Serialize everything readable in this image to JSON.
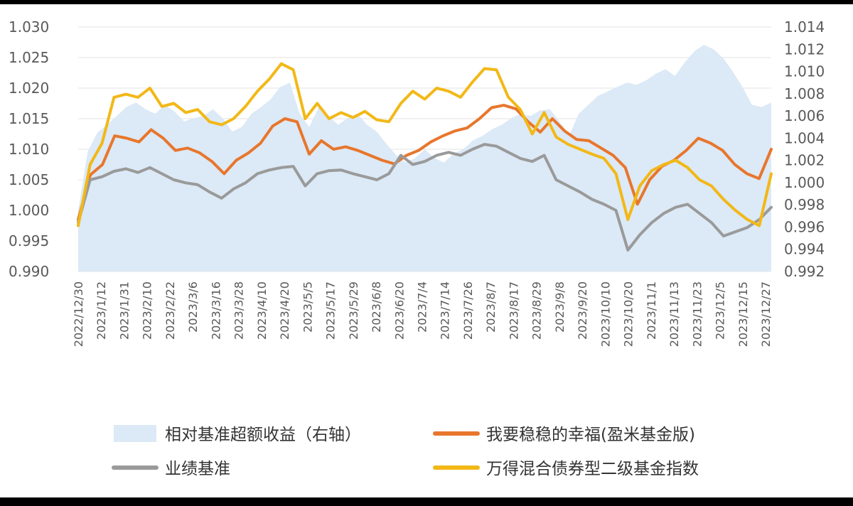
{
  "chart_data": {
    "type": "line",
    "title": "",
    "left_axis": {
      "ylim": [
        0.99,
        1.03
      ],
      "ticks": [
        "1.030",
        "1.025",
        "1.020",
        "1.015",
        "1.010",
        "1.005",
        "1.000",
        "0.995",
        "0.990"
      ]
    },
    "right_axis": {
      "ylim": [
        0.992,
        1.014
      ],
      "ticks": [
        "1.014",
        "1.012",
        "1.010",
        "1.008",
        "1.006",
        "1.004",
        "1.002",
        "1.000",
        "0.998",
        "0.996",
        "0.994",
        "0.992"
      ]
    },
    "x_tick_labels": [
      "2022/12/30",
      "2023/1/12",
      "2023/1/31",
      "2023/2/10",
      "2023/2/22",
      "2023/3/6",
      "2023/3/16",
      "2023/3/28",
      "2023/4/10",
      "2023/4/20",
      "2023/5/5",
      "2023/5/17",
      "2023/5/29",
      "2023/6/8",
      "2023/6/20",
      "2023/7/4",
      "2023/7/14",
      "2023/7/26",
      "2023/8/7",
      "2023/8/17",
      "2023/8/29",
      "2023/9/8",
      "2023/9/20",
      "2023/10/10",
      "2023/10/20",
      "2023/11/1",
      "2023/11/13",
      "2023/11/23",
      "2023/12/5",
      "2023/12/15",
      "2023/12/27"
    ],
    "series": [
      {
        "name": "相对基准超额收益（右轴）",
        "type": "area",
        "axis": "right",
        "color": "#dce9f6",
        "values": [
          0.9975,
          1.0028,
          1.0045,
          1.0052,
          1.006,
          1.0068,
          1.0072,
          1.0066,
          1.0062,
          1.007,
          1.0064,
          1.0055,
          1.0058,
          1.006,
          1.0066,
          1.0058,
          1.0046,
          1.005,
          1.0062,
          1.0068,
          1.0075,
          1.0086,
          1.009,
          1.0062,
          1.005,
          1.0068,
          1.006,
          1.0052,
          1.0058,
          1.0062,
          1.0052,
          1.0046,
          1.0035,
          1.0025,
          1.0018,
          1.0022,
          1.003,
          1.0022,
          1.0018,
          1.0026,
          1.003,
          1.0038,
          1.0042,
          1.0048,
          1.0052,
          1.0058,
          1.0062,
          1.006,
          1.0065,
          1.0066,
          1.0055,
          1.0042,
          1.0062,
          1.007,
          1.0078,
          1.0082,
          1.0086,
          1.009,
          1.0088,
          1.0092,
          1.0098,
          1.0102,
          1.0096,
          1.0108,
          1.0118,
          1.0124,
          1.012,
          1.0112,
          1.01,
          1.0086,
          1.007,
          1.0068,
          1.0072
        ]
      },
      {
        "name": "我要稳稳的幸福(盈米基金版)",
        "type": "line",
        "axis": "left",
        "color": "#e8762c",
        "values": [
          0.9985,
          1.0058,
          1.0075,
          1.0122,
          1.0118,
          1.0112,
          1.0132,
          1.0118,
          1.0098,
          1.0102,
          1.0094,
          1.008,
          1.006,
          1.0082,
          1.0094,
          1.011,
          1.0138,
          1.015,
          1.0145,
          1.0092,
          1.0114,
          1.01,
          1.0104,
          1.0098,
          1.009,
          1.0082,
          1.0076,
          1.009,
          1.0098,
          1.0112,
          1.0122,
          1.013,
          1.0135,
          1.015,
          1.0168,
          1.0172,
          1.0166,
          1.0145,
          1.0128,
          1.015,
          1.013,
          1.0116,
          1.0114,
          1.0102,
          1.009,
          1.007,
          1.001,
          1.005,
          1.0072,
          1.0082,
          1.0098,
          1.0118,
          1.011,
          1.0098,
          1.0075,
          1.006,
          1.0052,
          1.01
        ]
      },
      {
        "name": "业绩基准",
        "type": "line",
        "axis": "left",
        "color": "#9a9a9a",
        "values": [
          0.998,
          1.005,
          1.0055,
          1.0064,
          1.0068,
          1.0062,
          1.007,
          1.006,
          1.005,
          1.0045,
          1.0042,
          1.003,
          1.002,
          1.0035,
          1.0045,
          1.006,
          1.0066,
          1.007,
          1.0072,
          1.004,
          1.006,
          1.0065,
          1.0066,
          1.006,
          1.0055,
          1.005,
          1.006,
          1.009,
          1.0075,
          1.008,
          1.009,
          1.0095,
          1.009,
          1.01,
          1.0108,
          1.0105,
          1.0095,
          1.0085,
          1.008,
          1.009,
          1.005,
          1.004,
          1.003,
          1.0018,
          1.001,
          1.0,
          0.9935,
          0.996,
          0.998,
          0.9995,
          1.0005,
          1.001,
          0.9995,
          0.998,
          0.9958,
          0.9965,
          0.9972,
          0.9985,
          1.0005
        ]
      },
      {
        "name": "万得混合债券型二级基金指数",
        "type": "line",
        "axis": "left",
        "color": "#f2b817",
        "values": [
          0.9975,
          1.0075,
          1.011,
          1.0185,
          1.019,
          1.0185,
          1.02,
          1.017,
          1.0175,
          1.016,
          1.0165,
          1.0145,
          1.014,
          1.015,
          1.017,
          1.0195,
          1.0215,
          1.024,
          1.023,
          1.015,
          1.0175,
          1.015,
          1.016,
          1.0152,
          1.0162,
          1.0148,
          1.0145,
          1.0175,
          1.0195,
          1.0182,
          1.02,
          1.0195,
          1.0185,
          1.021,
          1.0232,
          1.023,
          1.0185,
          1.0165,
          1.0125,
          1.016,
          1.012,
          1.0108,
          1.01,
          1.0092,
          1.0085,
          1.006,
          0.9985,
          1.004,
          1.0065,
          1.0075,
          1.0082,
          1.007,
          1.005,
          1.004,
          1.0018,
          1.0,
          0.9985,
          0.9975,
          1.006
        ]
      }
    ],
    "legend": {
      "position": "bottom",
      "items": [
        "相对基准超额收益（右轴）",
        "我要稳稳的幸福(盈米基金版)",
        "业绩基准",
        "万得混合债券型二级基金指数"
      ]
    }
  }
}
